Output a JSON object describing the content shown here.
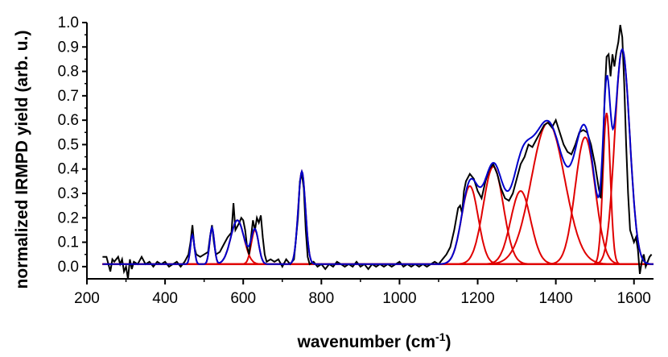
{
  "chart_data": {
    "type": "line",
    "xlabel": {
      "text": "wavenumber (cm",
      "sup": "-1",
      "tail": ")"
    },
    "ylabel": "normalized IRMPD yield (arb. u.)",
    "xlim": [
      200,
      1650
    ],
    "ylim": [
      -0.05,
      1.0
    ],
    "xticks": [
      200,
      400,
      600,
      800,
      1000,
      1200,
      1400,
      1600
    ],
    "yticks": [
      0.0,
      0.1,
      0.2,
      0.3,
      0.4,
      0.5,
      0.6,
      0.7,
      0.8,
      0.9,
      1.0
    ],
    "grid": false,
    "legend": "none",
    "colors": {
      "experimental": "#000000",
      "fit": "#0000cc",
      "components": "#e00000"
    },
    "peak_components": [
      {
        "center": 470,
        "height": 0.12,
        "fwhm": 12
      },
      {
        "center": 520,
        "height": 0.15,
        "fwhm": 14
      },
      {
        "center": 585,
        "height": 0.18,
        "fwhm": 40
      },
      {
        "center": 630,
        "height": 0.14,
        "fwhm": 22
      },
      {
        "center": 750,
        "height": 0.38,
        "fwhm": 22
      },
      {
        "center": 1180,
        "height": 0.32,
        "fwhm": 50
      },
      {
        "center": 1240,
        "height": 0.4,
        "fwhm": 60
      },
      {
        "center": 1310,
        "height": 0.3,
        "fwhm": 60
      },
      {
        "center": 1380,
        "height": 0.58,
        "fwhm": 100
      },
      {
        "center": 1475,
        "height": 0.52,
        "fwhm": 60
      },
      {
        "center": 1530,
        "height": 0.62,
        "fwhm": 22
      },
      {
        "center": 1570,
        "height": 0.88,
        "fwhm": 45
      }
    ],
    "experimental": [
      [
        240,
        0.04
      ],
      [
        250,
        0.04
      ],
      [
        260,
        -0.02
      ],
      [
        265,
        0.03
      ],
      [
        270,
        0.02
      ],
      [
        280,
        0.04
      ],
      [
        285,
        0.01
      ],
      [
        290,
        0.03
      ],
      [
        295,
        -0.02
      ],
      [
        300,
        0.0
      ],
      [
        305,
        -0.05
      ],
      [
        310,
        0.03
      ],
      [
        315,
        -0.01
      ],
      [
        320,
        0.02
      ],
      [
        330,
        0.01
      ],
      [
        340,
        0.04
      ],
      [
        350,
        0.01
      ],
      [
        360,
        0.02
      ],
      [
        370,
        0.0
      ],
      [
        380,
        0.02
      ],
      [
        390,
        0.01
      ],
      [
        400,
        0.02
      ],
      [
        410,
        0.0
      ],
      [
        420,
        0.01
      ],
      [
        430,
        0.02
      ],
      [
        440,
        0.0
      ],
      [
        450,
        0.02
      ],
      [
        460,
        0.05
      ],
      [
        465,
        0.1
      ],
      [
        470,
        0.17
      ],
      [
        475,
        0.08
      ],
      [
        480,
        0.05
      ],
      [
        490,
        0.04
      ],
      [
        500,
        0.05
      ],
      [
        510,
        0.06
      ],
      [
        515,
        0.12
      ],
      [
        520,
        0.17
      ],
      [
        525,
        0.1
      ],
      [
        530,
        0.05
      ],
      [
        540,
        0.06
      ],
      [
        550,
        0.09
      ],
      [
        560,
        0.12
      ],
      [
        570,
        0.14
      ],
      [
        575,
        0.26
      ],
      [
        580,
        0.15
      ],
      [
        590,
        0.18
      ],
      [
        595,
        0.2
      ],
      [
        600,
        0.19
      ],
      [
        605,
        0.15
      ],
      [
        610,
        0.08
      ],
      [
        615,
        0.05
      ],
      [
        620,
        0.12
      ],
      [
        625,
        0.19
      ],
      [
        630,
        0.15
      ],
      [
        635,
        0.2
      ],
      [
        640,
        0.18
      ],
      [
        645,
        0.21
      ],
      [
        650,
        0.12
      ],
      [
        655,
        0.05
      ],
      [
        660,
        0.02
      ],
      [
        670,
        0.03
      ],
      [
        680,
        0.02
      ],
      [
        690,
        0.03
      ],
      [
        700,
        0.0
      ],
      [
        710,
        0.03
      ],
      [
        720,
        0.01
      ],
      [
        730,
        0.03
      ],
      [
        740,
        0.2
      ],
      [
        745,
        0.35
      ],
      [
        750,
        0.38
      ],
      [
        755,
        0.32
      ],
      [
        760,
        0.15
      ],
      [
        765,
        0.04
      ],
      [
        770,
        0.01
      ],
      [
        780,
        0.02
      ],
      [
        790,
        0.0
      ],
      [
        800,
        0.01
      ],
      [
        810,
        -0.01
      ],
      [
        820,
        0.01
      ],
      [
        830,
        0.0
      ],
      [
        840,
        0.02
      ],
      [
        850,
        0.01
      ],
      [
        860,
        0.0
      ],
      [
        870,
        0.01
      ],
      [
        880,
        0.0
      ],
      [
        890,
        0.02
      ],
      [
        900,
        0.0
      ],
      [
        910,
        0.01
      ],
      [
        920,
        -0.01
      ],
      [
        930,
        0.01
      ],
      [
        940,
        0.0
      ],
      [
        950,
        0.01
      ],
      [
        960,
        0.0
      ],
      [
        970,
        0.01
      ],
      [
        980,
        0.0
      ],
      [
        990,
        0.01
      ],
      [
        1000,
        0.02
      ],
      [
        1010,
        0.0
      ],
      [
        1020,
        0.01
      ],
      [
        1030,
        0.0
      ],
      [
        1040,
        0.01
      ],
      [
        1050,
        0.0
      ],
      [
        1060,
        0.01
      ],
      [
        1070,
        0.0
      ],
      [
        1080,
        0.01
      ],
      [
        1090,
        0.02
      ],
      [
        1100,
        0.01
      ],
      [
        1110,
        0.03
      ],
      [
        1120,
        0.05
      ],
      [
        1130,
        0.08
      ],
      [
        1140,
        0.15
      ],
      [
        1150,
        0.24
      ],
      [
        1155,
        0.25
      ],
      [
        1160,
        0.22
      ],
      [
        1165,
        0.31
      ],
      [
        1170,
        0.35
      ],
      [
        1180,
        0.38
      ],
      [
        1190,
        0.36
      ],
      [
        1200,
        0.31
      ],
      [
        1210,
        0.28
      ],
      [
        1220,
        0.35
      ],
      [
        1230,
        0.4
      ],
      [
        1240,
        0.42
      ],
      [
        1250,
        0.38
      ],
      [
        1260,
        0.32
      ],
      [
        1270,
        0.28
      ],
      [
        1280,
        0.27
      ],
      [
        1290,
        0.3
      ],
      [
        1300,
        0.36
      ],
      [
        1310,
        0.42
      ],
      [
        1320,
        0.45
      ],
      [
        1330,
        0.5
      ],
      [
        1340,
        0.49
      ],
      [
        1350,
        0.52
      ],
      [
        1360,
        0.55
      ],
      [
        1370,
        0.58
      ],
      [
        1380,
        0.59
      ],
      [
        1390,
        0.57
      ],
      [
        1400,
        0.6
      ],
      [
        1410,
        0.55
      ],
      [
        1420,
        0.5
      ],
      [
        1430,
        0.47
      ],
      [
        1440,
        0.46
      ],
      [
        1450,
        0.5
      ],
      [
        1460,
        0.55
      ],
      [
        1470,
        0.56
      ],
      [
        1480,
        0.55
      ],
      [
        1490,
        0.5
      ],
      [
        1500,
        0.42
      ],
      [
        1510,
        0.32
      ],
      [
        1515,
        0.28
      ],
      [
        1520,
        0.45
      ],
      [
        1525,
        0.7
      ],
      [
        1530,
        0.86
      ],
      [
        1535,
        0.87
      ],
      [
        1540,
        0.78
      ],
      [
        1545,
        0.87
      ],
      [
        1550,
        0.82
      ],
      [
        1555,
        0.88
      ],
      [
        1560,
        0.92
      ],
      [
        1565,
        0.99
      ],
      [
        1570,
        0.94
      ],
      [
        1575,
        0.75
      ],
      [
        1580,
        0.5
      ],
      [
        1585,
        0.3
      ],
      [
        1590,
        0.15
      ],
      [
        1600,
        0.1
      ],
      [
        1605,
        0.12
      ],
      [
        1610,
        0.07
      ],
      [
        1615,
        -0.03
      ],
      [
        1620,
        0.02
      ],
      [
        1625,
        0.05
      ],
      [
        1630,
        0.0
      ],
      [
        1640,
        0.04
      ],
      [
        1645,
        0.05
      ]
    ]
  }
}
